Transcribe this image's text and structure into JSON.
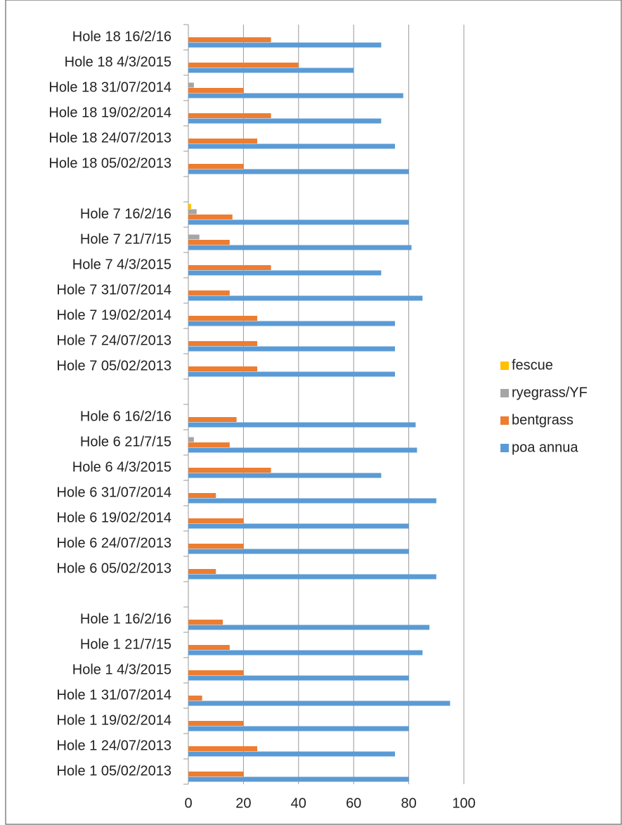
{
  "chart_data": {
    "type": "hbar",
    "categories": [
      "Hole 18 16/2/16",
      "Hole 18 4/3/2015",
      "Hole 18 31/07/2014",
      "Hole 18 19/02/2014",
      "Hole 18 24/07/2013",
      "Hole 18 05/02/2013",
      null,
      "Hole 7 16/2/16",
      "Hole 7 21/7/15",
      "Hole 7 4/3/2015",
      "Hole 7 31/07/2014",
      "Hole 7 19/02/2014",
      "Hole 7 24/07/2013",
      "Hole 7 05/02/2013",
      null,
      "Hole 6 16/2/16",
      "Hole 6 21/7/15",
      "Hole 6 4/3/2015",
      "Hole 6 31/07/2014",
      "Hole 6 19/02/2014",
      "Hole 6 24/07/2013",
      "Hole 6 05/02/2013",
      null,
      "Hole 1 16/2/16",
      "Hole 1 21/7/15",
      "Hole 1 4/3/2015",
      "Hole 1 31/07/2014",
      "Hole 1 19/02/2014",
      "Hole 1 24/07/2013",
      "Hole 1 05/02/2013"
    ],
    "series": [
      {
        "name": "fescue",
        "color": "#ffc000",
        "values": [
          null,
          null,
          null,
          null,
          null,
          null,
          null,
          1,
          null,
          null,
          null,
          null,
          null,
          null,
          null,
          null,
          null,
          null,
          null,
          null,
          null,
          null,
          null,
          null,
          null,
          null,
          null,
          null,
          null,
          null
        ]
      },
      {
        "name": "ryegrass/YF",
        "color": "#a5a5a5",
        "values": [
          null,
          null,
          2,
          null,
          null,
          null,
          null,
          3,
          4,
          null,
          null,
          null,
          null,
          null,
          null,
          null,
          2,
          null,
          null,
          null,
          null,
          null,
          null,
          null,
          null,
          null,
          null,
          null,
          null,
          null
        ]
      },
      {
        "name": "bentgrass",
        "color": "#ed7d31",
        "values": [
          30,
          40,
          20,
          30,
          25,
          20,
          null,
          16,
          15,
          30,
          15,
          25,
          25,
          25,
          null,
          17.5,
          15,
          30,
          10,
          20,
          20,
          10,
          null,
          12.5,
          15,
          20,
          5,
          20,
          25,
          20
        ]
      },
      {
        "name": "poa annua",
        "color": "#5b9bd5",
        "values": [
          70,
          60,
          78,
          70,
          75,
          80,
          null,
          80,
          81,
          70,
          85,
          75,
          75,
          75,
          null,
          82.5,
          83,
          70,
          90,
          80,
          80,
          90,
          null,
          87.5,
          85,
          80,
          95,
          80,
          75,
          80
        ]
      }
    ],
    "xlim": [
      0,
      100
    ],
    "xticks": [
      0,
      20,
      40,
      60,
      80,
      100
    ],
    "grid": true,
    "legend": "right"
  }
}
